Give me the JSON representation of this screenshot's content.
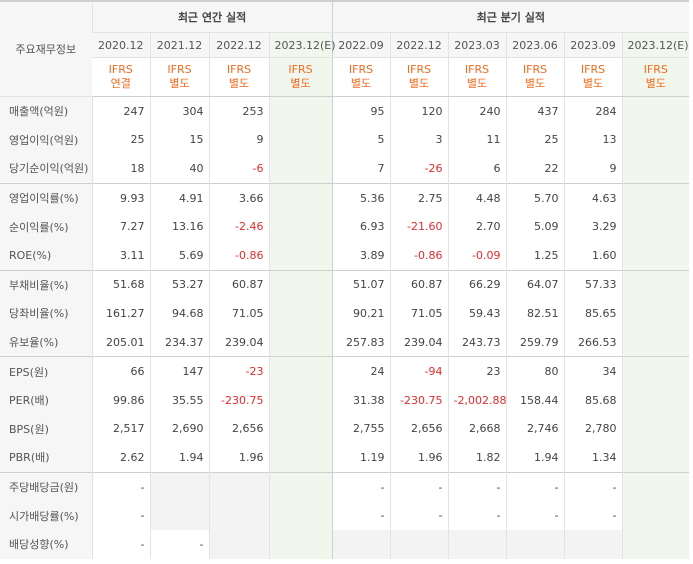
{
  "header": {
    "row_label": "주요재무정보",
    "annual_title": "최근 연간 실적",
    "quarterly_title": "최근 분기 실적",
    "periods": [
      "2020.12",
      "2021.12",
      "2022.12",
      "2023.12(E)",
      "2022.09",
      "2022.12",
      "2023.03",
      "2023.06",
      "2023.09",
      "2023.12(E)"
    ],
    "standards_top": [
      "IFRS",
      "IFRS",
      "IFRS",
      "IFRS",
      "IFRS",
      "IFRS",
      "IFRS",
      "IFRS",
      "IFRS",
      "IFRS"
    ],
    "standards_bottom": [
      "연결",
      "별도",
      "별도",
      "별도",
      "별도",
      "별도",
      "별도",
      "별도",
      "별도",
      "별도"
    ]
  },
  "colors": {
    "negative": "#e22b2b",
    "ifrs_label": "#f26b1d",
    "estimate_bg": "#f1f7ec",
    "label_bg": "#f6f6f6",
    "empty_bg": "#f3f3f3"
  },
  "rows": [
    {
      "label": "매출액(억원)",
      "values": [
        "247",
        "304",
        "253",
        "",
        "95",
        "120",
        "240",
        "437",
        "284",
        ""
      ]
    },
    {
      "label": "영업이익(억원)",
      "values": [
        "25",
        "15",
        "9",
        "",
        "5",
        "3",
        "11",
        "25",
        "13",
        ""
      ]
    },
    {
      "label": "당기순이익(억원)",
      "values": [
        "18",
        "40",
        "-6",
        "",
        "7",
        "-26",
        "6",
        "22",
        "9",
        ""
      ]
    },
    {
      "label": "영업이익률(%)",
      "values": [
        "9.93",
        "4.91",
        "3.66",
        "",
        "5.36",
        "2.75",
        "4.48",
        "5.70",
        "4.63",
        ""
      ]
    },
    {
      "label": "순이익률(%)",
      "values": [
        "7.27",
        "13.16",
        "-2.46",
        "",
        "6.93",
        "-21.60",
        "2.70",
        "5.09",
        "3.29",
        ""
      ]
    },
    {
      "label": "ROE(%)",
      "values": [
        "3.11",
        "5.69",
        "-0.86",
        "",
        "3.89",
        "-0.86",
        "-0.09",
        "1.25",
        "1.60",
        ""
      ]
    },
    {
      "label": "부채비율(%)",
      "values": [
        "51.68",
        "53.27",
        "60.87",
        "",
        "51.07",
        "60.87",
        "66.29",
        "64.07",
        "57.33",
        ""
      ]
    },
    {
      "label": "당좌비율(%)",
      "values": [
        "161.27",
        "94.68",
        "71.05",
        "",
        "90.21",
        "71.05",
        "59.43",
        "82.51",
        "85.65",
        ""
      ]
    },
    {
      "label": "유보율(%)",
      "values": [
        "205.01",
        "234.37",
        "239.04",
        "",
        "257.83",
        "239.04",
        "243.73",
        "259.79",
        "266.53",
        ""
      ]
    },
    {
      "label": "EPS(원)",
      "values": [
        "66",
        "147",
        "-23",
        "",
        "24",
        "-94",
        "23",
        "80",
        "34",
        ""
      ]
    },
    {
      "label": "PER(배)",
      "values": [
        "99.86",
        "35.55",
        "-230.75",
        "",
        "31.38",
        "-230.75",
        "-2,002.88",
        "158.44",
        "85.68",
        ""
      ]
    },
    {
      "label": "BPS(원)",
      "values": [
        "2,517",
        "2,690",
        "2,656",
        "",
        "2,755",
        "2,656",
        "2,668",
        "2,746",
        "2,780",
        ""
      ]
    },
    {
      "label": "PBR(배)",
      "values": [
        "2.62",
        "1.94",
        "1.96",
        "",
        "1.19",
        "1.96",
        "1.82",
        "1.94",
        "1.34",
        ""
      ]
    },
    {
      "label": "주당배당금(원)",
      "values": [
        "-",
        "",
        "",
        "",
        "-",
        "-",
        "-",
        "-",
        "-",
        ""
      ]
    },
    {
      "label": "시가배당률(%)",
      "values": [
        "-",
        "",
        "",
        "",
        "-",
        "-",
        "-",
        "-",
        "-",
        ""
      ]
    },
    {
      "label": "배당성향(%)",
      "values": [
        "-",
        "-",
        "",
        "",
        "",
        "",
        "",
        "",
        "",
        ""
      ]
    }
  ]
}
